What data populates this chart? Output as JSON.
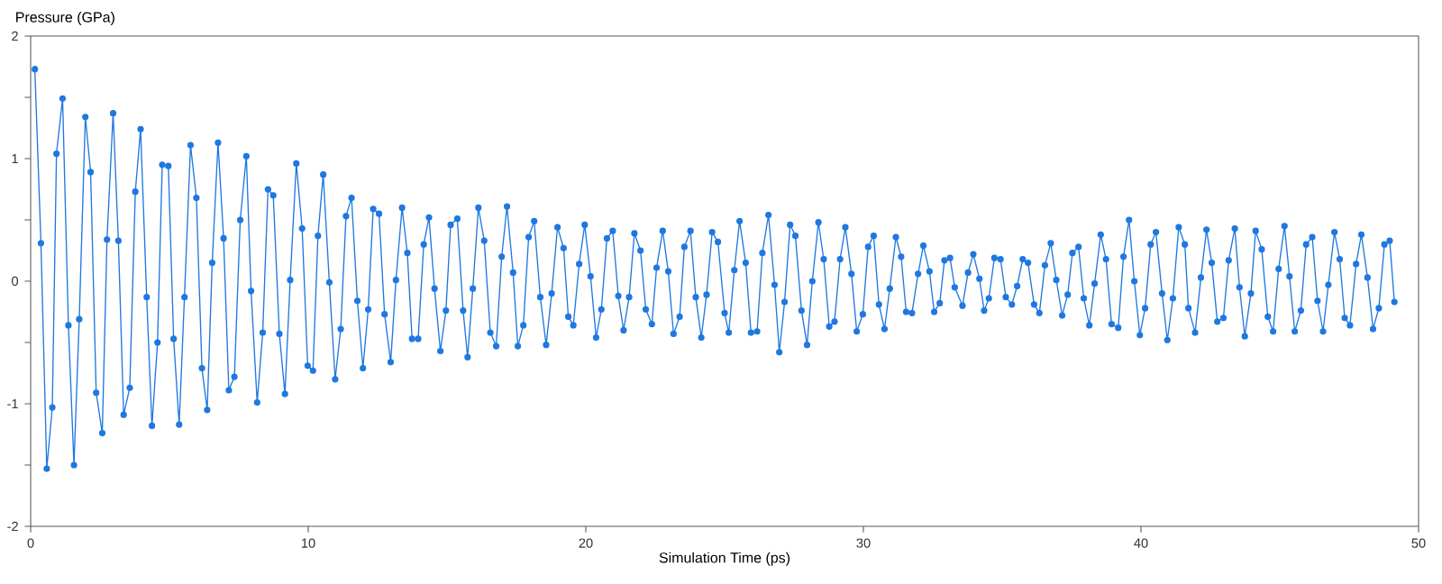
{
  "chart_data": {
    "type": "line",
    "xlabel": "Simulation Time (ps)",
    "ylabel": "Pressure (GPa)",
    "xlim": [
      0,
      50
    ],
    "xticks": [
      0,
      10,
      20,
      30,
      40,
      50
    ],
    "ylim": [
      -2,
      2
    ],
    "yticks": [
      -2,
      {
        "value": -1.5,
        "label": null
      },
      -1,
      {
        "value": -0.5,
        "label": null
      },
      0,
      {
        "value": 0.5,
        "label": null
      },
      1,
      {
        "value": 1.5,
        "label": null
      },
      2
    ],
    "grid": false,
    "marker": "circle",
    "line_style": "solid",
    "series": [
      {
        "color": "#1e78e0",
        "x": [
          0.15,
          0.37,
          0.58,
          0.78,
          0.93,
          1.15,
          1.36,
          1.56,
          1.75,
          1.97,
          2.16,
          2.36,
          2.58,
          2.75,
          2.97,
          3.16,
          3.35,
          3.57,
          3.77,
          3.96,
          4.18,
          4.37,
          4.57,
          4.74,
          4.96,
          5.15,
          5.35,
          5.54,
          5.76,
          5.97,
          6.17,
          6.36,
          6.54,
          6.75,
          6.95,
          7.14,
          7.34,
          7.55,
          7.77,
          7.94,
          8.16,
          8.36,
          8.55,
          8.74,
          8.96,
          9.16,
          9.35,
          9.57,
          9.78,
          9.98,
          10.17,
          10.35,
          10.54,
          10.76,
          10.97,
          11.17,
          11.36,
          11.56,
          11.77,
          11.97,
          12.16,
          12.34,
          12.55,
          12.75,
          12.97,
          13.16,
          13.38,
          13.57,
          13.74,
          13.96,
          14.16,
          14.35,
          14.55,
          14.76,
          14.96,
          15.13,
          15.37,
          15.58,
          15.74,
          15.93,
          16.13,
          16.34,
          16.56,
          16.77,
          16.97,
          17.16,
          17.38,
          17.55,
          17.75,
          17.94,
          18.14,
          18.36,
          18.57,
          18.77,
          18.98,
          19.2,
          19.37,
          19.55,
          19.76,
          19.96,
          20.17,
          20.37,
          20.56,
          20.76,
          20.97,
          21.17,
          21.36,
          21.56,
          21.75,
          21.97,
          22.16,
          22.38,
          22.55,
          22.77,
          22.97,
          23.16,
          23.38,
          23.55,
          23.77,
          23.96,
          24.16,
          24.35,
          24.55,
          24.76,
          25.0,
          25.15,
          25.35,
          25.54,
          25.76,
          25.95,
          26.17,
          26.36,
          26.58,
          26.8,
          26.97,
          27.16,
          27.36,
          27.55,
          27.77,
          27.97,
          28.16,
          28.38,
          28.57,
          28.77,
          28.96,
          29.16,
          29.35,
          29.57,
          29.76,
          29.98,
          30.17,
          30.37,
          30.56,
          30.76,
          30.95,
          31.17,
          31.36,
          31.54,
          31.75,
          31.97,
          32.16,
          32.38,
          32.55,
          32.75,
          32.92,
          33.12,
          33.29,
          33.57,
          33.77,
          33.96,
          34.18,
          34.35,
          34.52,
          34.72,
          34.94,
          35.13,
          35.35,
          35.54,
          35.74,
          35.93,
          36.15,
          36.34,
          36.54,
          36.75,
          36.95,
          37.16,
          37.36,
          37.53,
          37.75,
          37.94,
          38.14,
          38.33,
          38.55,
          38.74,
          38.94,
          39.18,
          39.37,
          39.57,
          39.76,
          39.96,
          40.15,
          40.35,
          40.54,
          40.76,
          40.95,
          41.15,
          41.36,
          41.58,
          41.71,
          41.95,
          42.16,
          42.36,
          42.55,
          42.75,
          42.97,
          43.16,
          43.38,
          43.55,
          43.74,
          43.96,
          44.13,
          44.35,
          44.57,
          44.76,
          44.96,
          45.17,
          45.35,
          45.54,
          45.76,
          45.95,
          46.17,
          46.36,
          46.56,
          46.75,
          46.97,
          47.16,
          47.34,
          47.53,
          47.75,
          47.94,
          48.16,
          48.36,
          48.57,
          48.77,
          48.96,
          49.13
        ],
        "values": [
          1.73,
          0.31,
          -1.53,
          -1.03,
          1.04,
          1.49,
          -0.36,
          -1.5,
          -0.31,
          1.34,
          0.89,
          -0.91,
          -1.24,
          0.34,
          1.37,
          0.33,
          -1.09,
          -0.87,
          0.73,
          1.24,
          -0.13,
          -1.18,
          -0.5,
          0.95,
          0.94,
          -0.47,
          -1.17,
          -0.13,
          1.11,
          0.68,
          -0.71,
          -1.05,
          0.15,
          1.13,
          0.35,
          -0.89,
          -0.78,
          0.5,
          1.02,
          -0.08,
          -0.99,
          -0.42,
          0.75,
          0.7,
          -0.43,
          -0.92,
          0.01,
          0.96,
          0.43,
          -0.69,
          -0.73,
          0.37,
          0.87,
          -0.01,
          -0.8,
          -0.39,
          0.53,
          0.68,
          -0.16,
          -0.71,
          -0.23,
          0.59,
          0.55,
          -0.27,
          -0.66,
          0.01,
          0.6,
          0.23,
          -0.47,
          -0.47,
          0.3,
          0.52,
          -0.06,
          -0.57,
          -0.24,
          0.46,
          0.51,
          -0.24,
          -0.62,
          -0.06,
          0.6,
          0.33,
          -0.42,
          -0.53,
          0.2,
          0.61,
          0.07,
          -0.53,
          -0.36,
          0.36,
          0.49,
          -0.13,
          -0.52,
          -0.1,
          0.44,
          0.27,
          -0.29,
          -0.36,
          0.14,
          0.46,
          0.04,
          -0.46,
          -0.23,
          0.35,
          0.41,
          -0.12,
          -0.4,
          -0.13,
          0.39,
          0.25,
          -0.23,
          -0.35,
          0.11,
          0.41,
          0.08,
          -0.43,
          -0.29,
          0.28,
          0.41,
          -0.13,
          -0.46,
          -0.11,
          0.4,
          0.32,
          -0.26,
          -0.42,
          0.09,
          0.49,
          0.15,
          -0.42,
          -0.41,
          0.23,
          0.54,
          -0.03,
          -0.58,
          -0.17,
          0.46,
          0.37,
          -0.24,
          -0.52,
          0.0,
          0.48,
          0.18,
          -0.37,
          -0.33,
          0.18,
          0.44,
          0.06,
          -0.41,
          -0.27,
          0.28,
          0.37,
          -0.19,
          -0.39,
          -0.06,
          0.36,
          0.2,
          -0.25,
          -0.26,
          0.06,
          0.29,
          0.08,
          -0.25,
          -0.18,
          0.17,
          0.19,
          -0.05,
          -0.2,
          0.07,
          0.22,
          0.02,
          -0.24,
          -0.14,
          0.19,
          0.18,
          -0.13,
          -0.19,
          -0.04,
          0.18,
          0.15,
          -0.19,
          -0.26,
          0.13,
          0.31,
          0.01,
          -0.28,
          -0.11,
          0.23,
          0.28,
          -0.14,
          -0.36,
          -0.02,
          0.38,
          0.18,
          -0.35,
          -0.38,
          0.2,
          0.5,
          0.0,
          -0.44,
          -0.22,
          0.3,
          0.4,
          -0.1,
          -0.48,
          -0.14,
          0.44,
          0.3,
          -0.22,
          -0.42,
          0.03,
          0.42,
          0.15,
          -0.33,
          -0.3,
          0.17,
          0.43,
          -0.05,
          -0.45,
          -0.1,
          0.41,
          0.26,
          -0.29,
          -0.41,
          0.1,
          0.45,
          0.04,
          -0.41,
          -0.24,
          0.3,
          0.36,
          -0.16,
          -0.41,
          -0.03,
          0.4,
          0.18,
          -0.3,
          -0.36,
          0.14,
          0.38,
          0.03,
          -0.39,
          -0.22,
          0.3,
          0.33,
          -0.17
        ]
      }
    ]
  }
}
